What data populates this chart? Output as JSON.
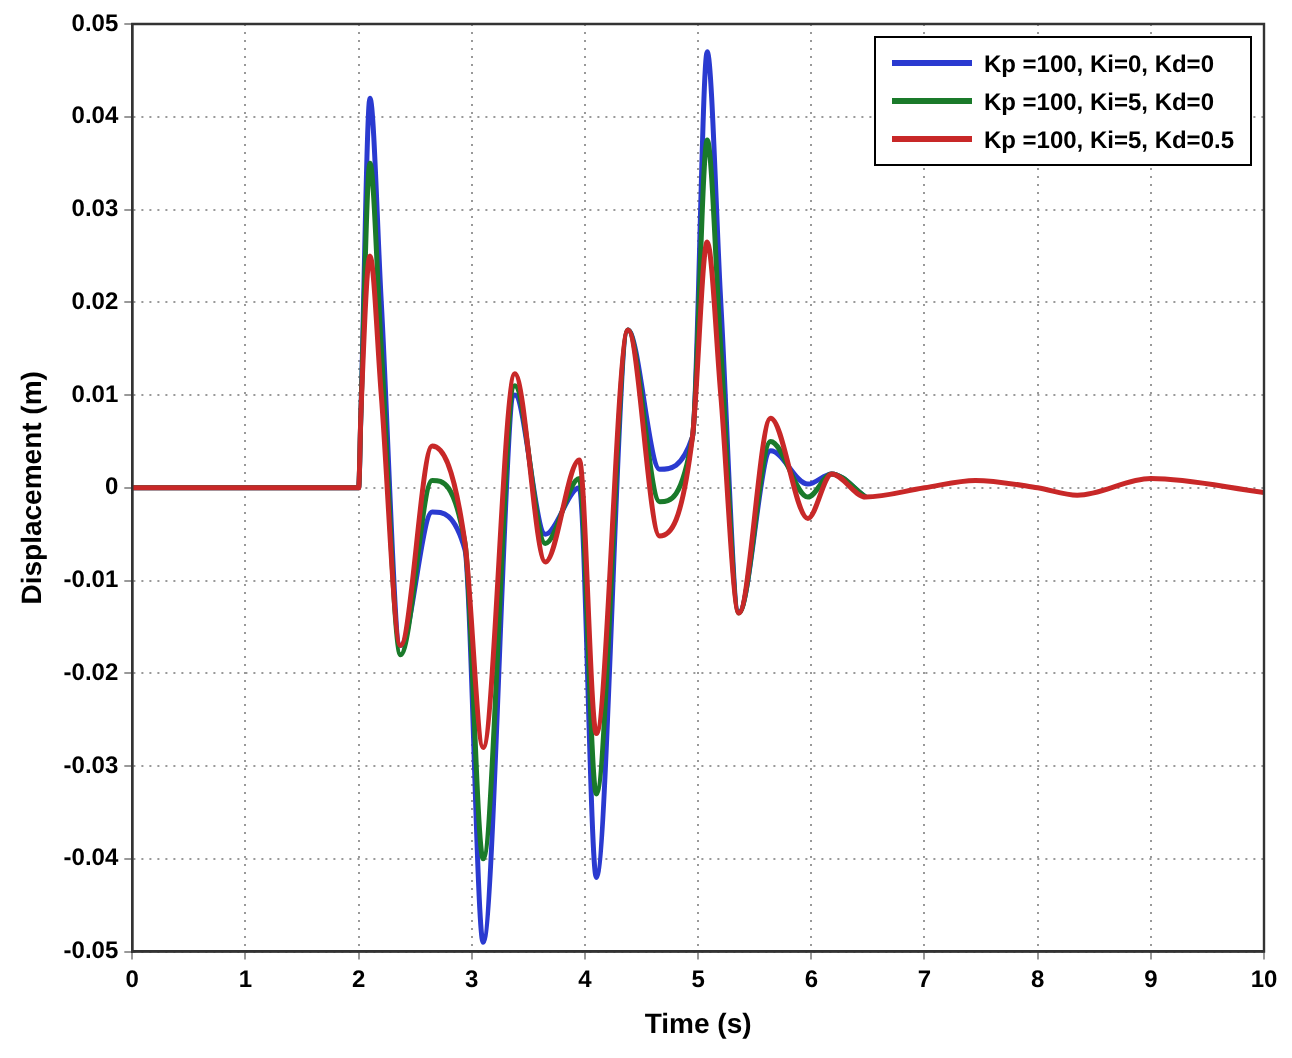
{
  "chart_data": {
    "type": "line",
    "xlabel": "Time (s)",
    "ylabel": "Displacement (m)",
    "x": [
      0,
      2,
      2.02,
      2.1,
      2.2,
      2.37,
      2.65,
      2.94,
      3.1,
      3.38,
      3.65,
      3.95,
      4.1,
      4.38,
      4.66,
      4.95,
      5.08,
      5.2,
      5.36,
      5.64,
      5.97,
      6.18,
      6.48,
      7,
      7.45,
      8,
      8.35,
      9,
      10
    ],
    "series": [
      {
        "name": "Kp =100, Ki=0, Kd=0",
        "color": "#2a3ad0",
        "values": [
          0,
          0,
          0.008,
          0.042,
          0.02,
          -0.017,
          -0.0026,
          -0.0067,
          -0.049,
          0.01,
          -0.005,
          0,
          -0.042,
          0.017,
          0.002,
          0.0055,
          0.047,
          0.02,
          -0.0134,
          0.004,
          0.0004,
          0.0015,
          -0.001,
          null,
          null,
          null,
          null,
          null,
          null
        ]
      },
      {
        "name": "Kp =100, Ki=5, Kd=0",
        "color": "#1a7a2a",
        "values": [
          0,
          0,
          0.008,
          0.035,
          0.015,
          -0.018,
          0.0008,
          -0.006,
          -0.04,
          0.011,
          -0.006,
          0.001,
          -0.033,
          0.017,
          -0.0015,
          0.0055,
          0.0375,
          0.015,
          -0.0135,
          0.005,
          -0.001,
          0.0015,
          -0.001,
          null,
          null,
          null,
          null,
          null,
          null
        ]
      },
      {
        "name": "Kp =100, Ki=5, Kd=0.5",
        "color": "#c82828",
        "values": [
          0,
          0,
          0.008,
          0.025,
          0.01,
          -0.017,
          0.0045,
          -0.006,
          -0.028,
          0.0123,
          -0.008,
          0.003,
          -0.0265,
          0.017,
          -0.0052,
          0.0055,
          0.0265,
          0.01,
          -0.0135,
          0.0075,
          -0.0033,
          0.0015,
          -0.001,
          0,
          0.0008,
          0,
          -0.0008,
          0.001,
          -0.0005
        ]
      }
    ],
    "xlim": [
      0,
      10
    ],
    "xticks": [
      0,
      1,
      2,
      3,
      4,
      5,
      6,
      7,
      8,
      9,
      10
    ],
    "ylim": [
      -0.05,
      0.05
    ],
    "yticks": [
      -0.05,
      -0.04,
      -0.03,
      -0.02,
      -0.01,
      0,
      0.01,
      0.02,
      0.03,
      0.04,
      0.05
    ],
    "grid": true,
    "legend": "top right",
    "marker": "none",
    "line_style": "solid"
  }
}
